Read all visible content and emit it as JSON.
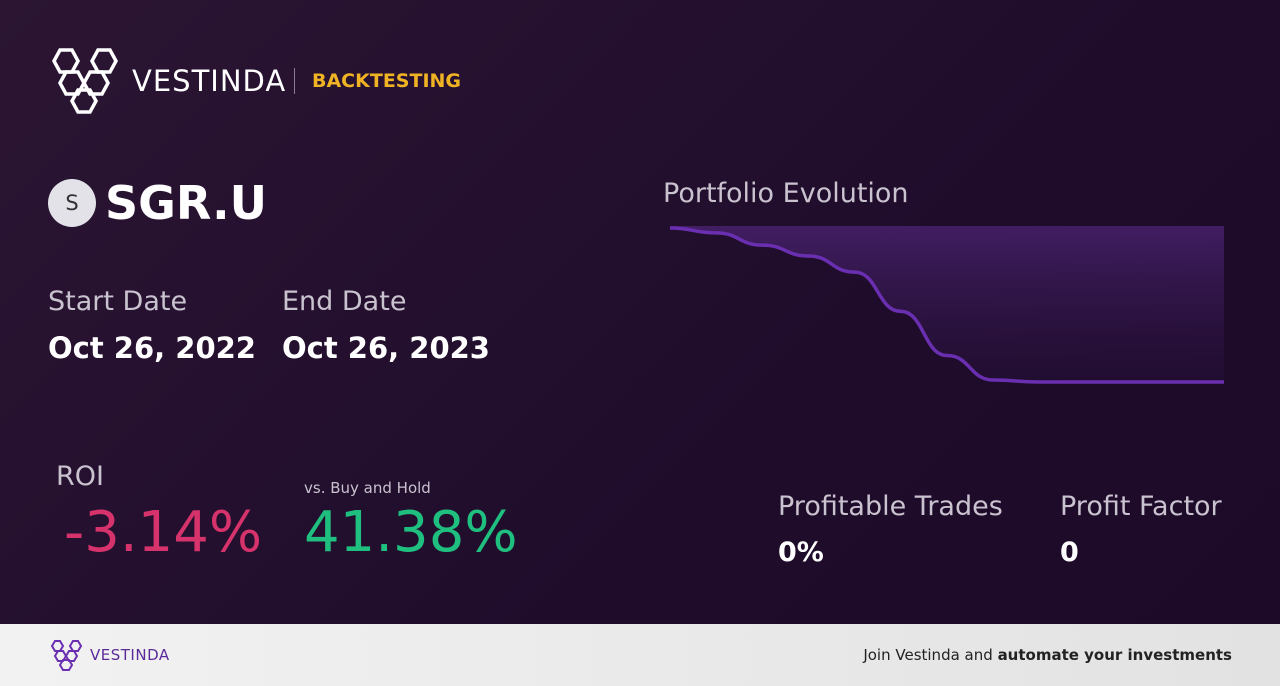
{
  "header": {
    "brand": "VESTINDA",
    "section": "BACKTESTING"
  },
  "asset": {
    "icon_letter": "S",
    "ticker": "SGR.U"
  },
  "dates": {
    "start_label": "Start Date",
    "start_value": "Oct 26, 2022",
    "end_label": "End Date",
    "end_value": "Oct 26, 2023"
  },
  "roi": {
    "label": "ROI",
    "value": "-3.14%",
    "vs_label": "vs. Buy and Hold",
    "vs_value": "41.38%"
  },
  "chart_data": {
    "type": "line",
    "title": "Portfolio Evolution",
    "color": "#6a2fb0",
    "values": [
      100,
      99.9,
      99.65,
      99.43,
      99.1,
      98.3,
      97.4,
      96.9,
      96.86,
      96.86,
      96.86,
      96.86,
      96.86
    ]
  },
  "stats": {
    "profitable_label": "Profitable Trades",
    "profitable_value": "0%",
    "factor_label": "Profit Factor",
    "factor_value": "0"
  },
  "footer": {
    "brand": "VESTINDA",
    "cta_plain": "Join Vestinda and",
    "cta_bold": "automate your investments"
  }
}
